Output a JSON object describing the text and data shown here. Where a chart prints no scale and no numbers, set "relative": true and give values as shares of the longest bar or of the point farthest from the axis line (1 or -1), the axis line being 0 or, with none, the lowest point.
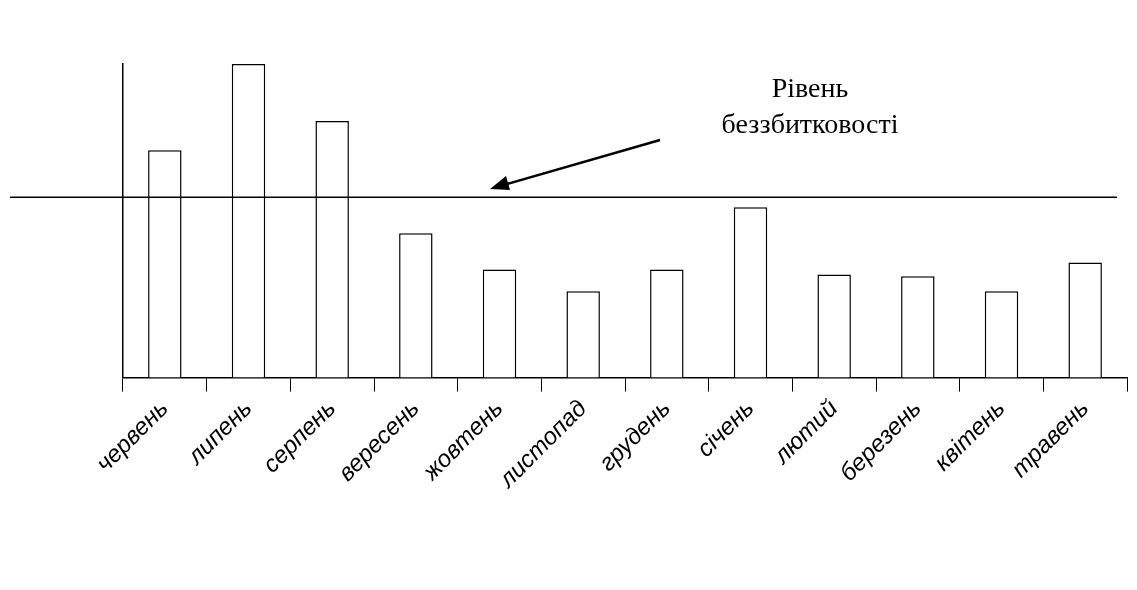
{
  "chart_data": {
    "type": "bar",
    "relative": true,
    "categories": [
      "червень",
      "липень",
      "серпень",
      "вересень",
      "жовтень",
      "листопад",
      "грудень",
      "січень",
      "лютий",
      "березень",
      "квітень",
      "травень"
    ],
    "values": [
      0.725,
      1,
      0.818,
      0.46,
      0.345,
      0.275,
      0.345,
      0.543,
      0.329,
      0.323,
      0.275,
      0.367
    ],
    "color": "#ffffff",
    "ref_lines": [
      {
        "axis": "y",
        "value": 0.575,
        "label": "Рівень беззбитковості",
        "color": "#000000"
      }
    ],
    "grid": false,
    "legend": false
  }
}
